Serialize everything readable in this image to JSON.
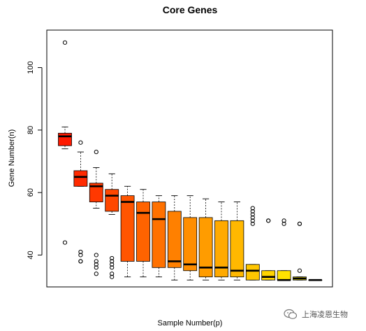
{
  "chart_data": {
    "type": "boxplot",
    "title": "Core Genes",
    "xlabel": "Sample Number(p)",
    "ylabel": "Gene Number(n)",
    "ylim": [
      29.8,
      112
    ],
    "yticks": [
      40,
      60,
      80,
      100
    ],
    "grid": false,
    "boxes": [
      {
        "q1": 75,
        "median": 78,
        "q3": 79,
        "whisker_low": 74,
        "whisker_high": 81,
        "outliers": [
          108,
          44
        ],
        "color": "#ff1a00"
      },
      {
        "q1": 62,
        "median": 65,
        "q3": 67,
        "whisker_low": 62,
        "whisker_high": 73,
        "outliers": [
          76,
          41,
          40,
          38,
          38
        ],
        "color": "#ff2a00"
      },
      {
        "q1": 57,
        "median": 62,
        "q3": 63,
        "whisker_low": 55,
        "whisker_high": 68,
        "outliers": [
          73,
          40,
          38,
          37,
          36,
          34
        ],
        "color": "#ff3800"
      },
      {
        "q1": 54,
        "median": 59,
        "q3": 61,
        "whisker_low": 53,
        "whisker_high": 66,
        "outliers": [
          39,
          38,
          37,
          36,
          34,
          33
        ],
        "color": "#ff4700"
      },
      {
        "q1": 38,
        "median": 57,
        "q3": 59,
        "whisker_low": 33,
        "whisker_high": 62,
        "outliers": [],
        "color": "#ff5500"
      },
      {
        "q1": 38,
        "median": 53.5,
        "q3": 57,
        "whisker_low": 33,
        "whisker_high": 61,
        "outliers": [],
        "color": "#ff6300"
      },
      {
        "q1": 36,
        "median": 51.5,
        "q3": 57,
        "whisker_low": 33,
        "whisker_high": 59,
        "outliers": [],
        "color": "#ff7100"
      },
      {
        "q1": 36,
        "median": 38,
        "q3": 54,
        "whisker_low": 32,
        "whisker_high": 59,
        "outliers": [],
        "color": "#ff8000"
      },
      {
        "q1": 35,
        "median": 37,
        "q3": 52,
        "whisker_low": 32,
        "whisker_high": 59,
        "outliers": [],
        "color": "#ff8e00"
      },
      {
        "q1": 33,
        "median": 36,
        "q3": 52,
        "whisker_low": 32,
        "whisker_high": 58,
        "outliers": [],
        "color": "#ff9c00"
      },
      {
        "q1": 33,
        "median": 36,
        "q3": 51,
        "whisker_low": 32,
        "whisker_high": 57,
        "outliers": [],
        "color": "#ffaa00"
      },
      {
        "q1": 33,
        "median": 35,
        "q3": 51,
        "whisker_low": 32,
        "whisker_high": 57,
        "outliers": [],
        "color": "#ffb800"
      },
      {
        "q1": 32,
        "median": 35,
        "q3": 37,
        "whisker_low": 32,
        "whisker_high": 37,
        "outliers": [
          55,
          54,
          53,
          52,
          51,
          50
        ],
        "color": "#ffc600"
      },
      {
        "q1": 32,
        "median": 33,
        "q3": 35,
        "whisker_low": 32,
        "whisker_high": 35,
        "outliers": [
          51,
          51
        ],
        "color": "#ffd400"
      },
      {
        "q1": 32,
        "median": 32,
        "q3": 35,
        "whisker_low": 32,
        "whisker_high": 35,
        "outliers": [
          51,
          50
        ],
        "color": "#ffe200"
      },
      {
        "q1": 32,
        "median": 32.5,
        "q3": 33,
        "whisker_low": 32,
        "whisker_high": 33,
        "outliers": [
          50,
          50,
          35
        ],
        "color": "#ffee00"
      },
      {
        "q1": 32,
        "median": 32,
        "q3": 32,
        "whisker_low": 32,
        "whisker_high": 32,
        "outliers": [],
        "color": "#fff200"
      }
    ]
  },
  "watermark": {
    "text": "上海凌恩生物",
    "icon": "wechat-icon"
  }
}
